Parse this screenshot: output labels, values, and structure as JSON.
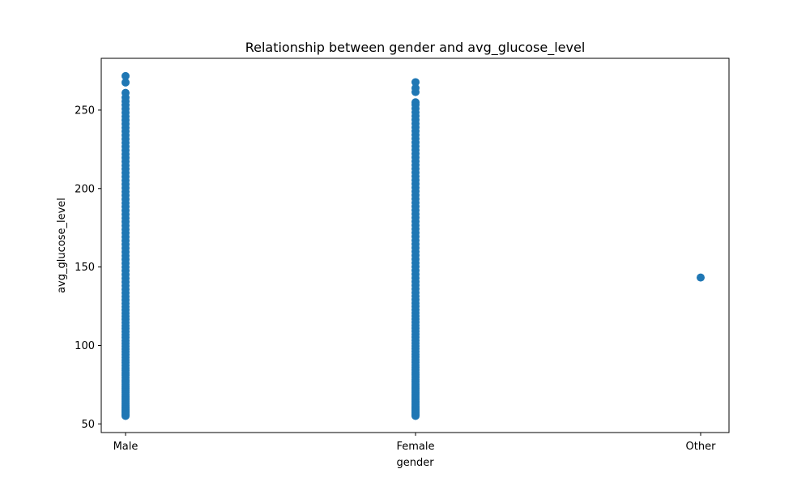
{
  "chart_data": {
    "type": "scatter",
    "title": "Relationship between gender and avg_glucose_level",
    "xlabel": "gender",
    "ylabel": "avg_glucose_level",
    "categories": [
      "Male",
      "Female",
      "Other"
    ],
    "ylim": [
      44.5,
      283.0
    ],
    "yticks": [
      50,
      100,
      150,
      200,
      250
    ],
    "grid": false,
    "marker_color": "#1f77b4",
    "series": [
      {
        "category": "Male",
        "y": [
          55.1,
          55.6,
          56.2,
          57.0,
          57.8,
          58.5,
          59.3,
          60.1,
          61.0,
          62.0,
          63.0,
          64.1,
          65.2,
          66.3,
          67.5,
          68.7,
          69.9,
          71.2,
          72.5,
          73.8,
          75.2,
          76.6,
          78.0,
          79.5,
          81.0,
          82.5,
          84.1,
          85.7,
          87.3,
          89.0,
          90.7,
          92.4,
          94.1,
          95.9,
          97.7,
          99.5,
          101.3,
          103.1,
          105.0,
          106.9,
          108.8,
          110.7,
          112.6,
          114.6,
          116.6,
          118.6,
          120.6,
          122.6,
          124.7,
          126.8,
          129.0,
          131.2,
          133.5,
          135.8,
          138.1,
          140.4,
          142.8,
          145.2,
          147.6,
          150.0,
          152.4,
          154.8,
          157.2,
          159.6,
          162.0,
          164.4,
          166.8,
          169.2,
          171.6,
          174.0,
          176.4,
          178.8,
          181.2,
          183.6,
          186.0,
          188.4,
          190.8,
          193.2,
          195.6,
          198.0,
          200.4,
          202.8,
          205.2,
          207.6,
          210.0,
          212.4,
          214.8,
          217.2,
          219.6,
          222.0,
          224.4,
          226.8,
          229.2,
          231.6,
          234.0,
          236.4,
          238.8,
          241.2,
          243.6,
          246.0,
          248.4,
          250.8,
          253.2,
          255.6,
          258.0,
          261.0,
          267.6,
          271.7
        ]
      },
      {
        "category": "Female",
        "y": [
          55.1,
          55.7,
          56.3,
          57.1,
          57.9,
          58.7,
          59.5,
          60.3,
          61.2,
          62.2,
          63.2,
          64.3,
          65.4,
          66.5,
          67.7,
          68.9,
          70.1,
          71.4,
          72.7,
          74.0,
          75.4,
          76.8,
          78.2,
          79.7,
          81.2,
          82.7,
          84.3,
          85.9,
          87.5,
          89.2,
          90.9,
          92.6,
          94.3,
          96.1,
          97.9,
          99.7,
          101.5,
          103.3,
          105.2,
          107.1,
          109.0,
          110.9,
          112.8,
          114.8,
          116.8,
          118.8,
          120.8,
          122.8,
          124.9,
          127.0,
          129.2,
          131.4,
          133.7,
          136.0,
          138.3,
          140.6,
          143.0,
          145.4,
          147.8,
          150.2,
          152.6,
          155.0,
          157.4,
          159.8,
          162.2,
          164.6,
          167.0,
          169.4,
          171.8,
          174.2,
          176.6,
          179.0,
          181.4,
          183.8,
          186.2,
          188.6,
          191.0,
          193.4,
          195.8,
          198.2,
          200.6,
          203.0,
          205.4,
          207.8,
          210.2,
          212.6,
          215.0,
          217.4,
          219.8,
          222.2,
          224.6,
          227.0,
          229.4,
          231.8,
          234.2,
          236.6,
          239.0,
          241.4,
          243.8,
          246.2,
          248.6,
          251.0,
          253.4,
          255.0,
          261.5,
          264.0,
          267.8
        ]
      },
      {
        "category": "Other",
        "y": [
          143.3
        ]
      }
    ]
  }
}
